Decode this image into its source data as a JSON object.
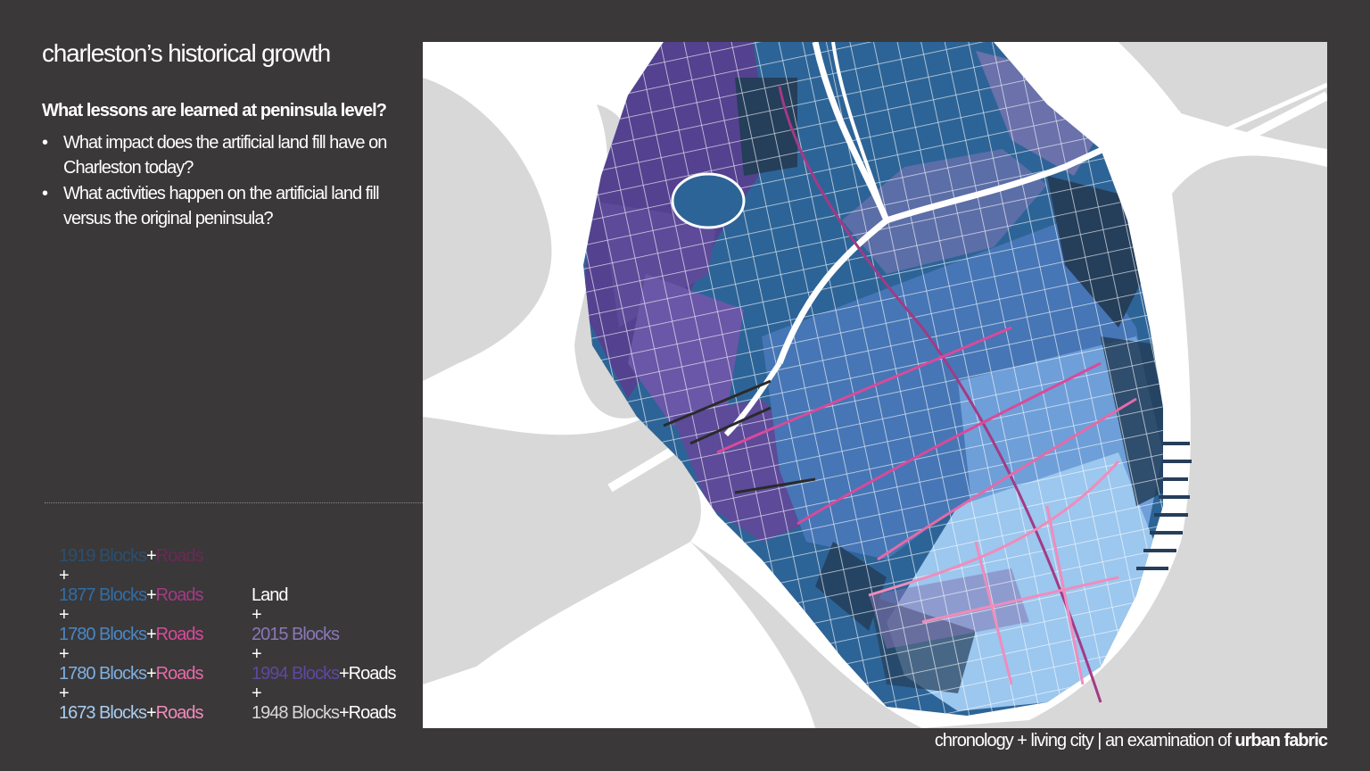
{
  "title": "charleston’s historical growth",
  "question": "What lessons are learned at peninsula level?",
  "bullets": [
    "What impact does the artificial land fill have on Charleston today?",
    "What activities happen on the artificial land fill versus the original peninsula?"
  ],
  "bullet_char": "•",
  "plus": "+",
  "legend_left": [
    {
      "blocks": "1919 Blocks",
      "roads": "Roads",
      "blocks_color": "#2b4f6f",
      "roads_color": "#6a2a55"
    },
    {
      "blocks": "1877 Blocks",
      "roads": "Roads",
      "blocks_color": "#2f6ea8",
      "roads_color": "#a33a86"
    },
    {
      "blocks": "1780 Blocks",
      "roads": "Roads",
      "blocks_color": "#4b86c4",
      "roads_color": "#d94a9a"
    },
    {
      "blocks": "1780 Blocks",
      "roads": "Roads",
      "blocks_color": "#7fb0e0",
      "roads_color": "#e56aa8"
    },
    {
      "blocks": "1673  Blocks",
      "roads": "Roads",
      "blocks_color": "#a9cdf0",
      "roads_color": "#f08cbc"
    }
  ],
  "legend_right": {
    "land": "Land",
    "items": [
      {
        "blocks": "2015 Blocks",
        "blocks_color": "#8a78b8",
        "roads": ""
      },
      {
        "blocks": "1994 Blocks",
        "blocks_color": "#5d48a0",
        "roads": "Roads"
      },
      {
        "blocks": "1948 Blocks",
        "blocks_color": "#d8d8d8",
        "roads": "Roads"
      }
    ]
  },
  "footer": {
    "regular": "chronology + living city | an examination of ",
    "bold": "urban fabric"
  },
  "colors": {
    "background": "#3a3839",
    "map_land": "#ffffff",
    "water": "#d8d8d8",
    "blocks_1919": "#253e5a",
    "blocks_1877": "#2d6497",
    "blocks_1780a": "#4676b5",
    "blocks_1780b": "#6e9fd8",
    "blocks_1673": "#9cc7ee",
    "blocks_2015": "#8476b4",
    "blocks_1994": "#54418f"
  }
}
